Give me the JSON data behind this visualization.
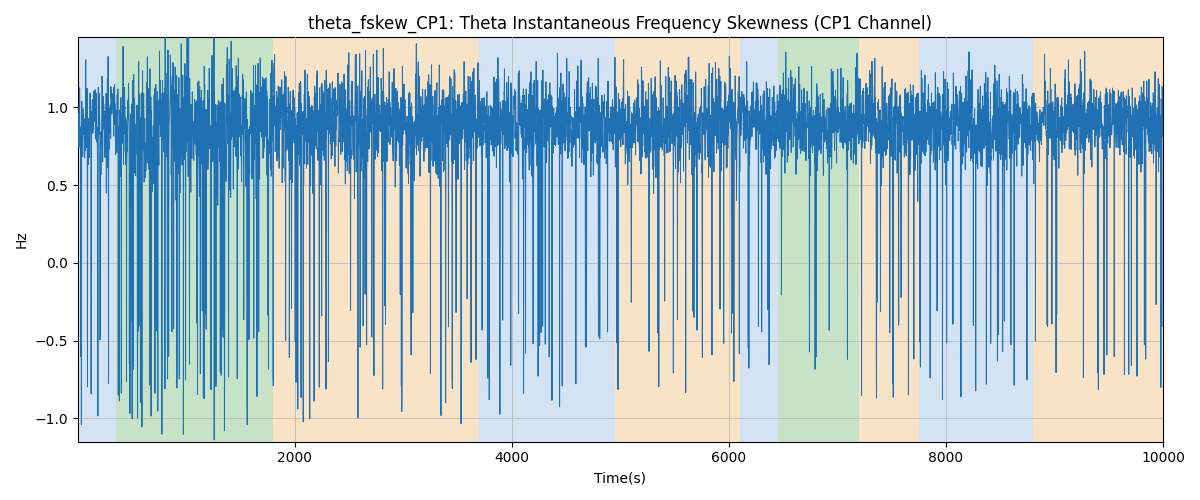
{
  "title": "theta_fskew_CP1: Theta Instantaneous Frequency Skewness (CP1 Channel)",
  "xlabel": "Time(s)",
  "ylabel": "Hz",
  "xlim": [
    0,
    10000
  ],
  "ylim": [
    -1.15,
    1.45
  ],
  "line_color": "#2070b4",
  "line_width": 0.7,
  "background_color": "#ffffff",
  "grid_color": "#bbbbbb",
  "bands": [
    {
      "xmin": 0,
      "xmax": 350,
      "color": "#a8c8e8",
      "alpha": 0.5
    },
    {
      "xmin": 350,
      "xmax": 1800,
      "color": "#90c890",
      "alpha": 0.5
    },
    {
      "xmin": 1800,
      "xmax": 3700,
      "color": "#f5c890",
      "alpha": 0.5
    },
    {
      "xmin": 3700,
      "xmax": 4950,
      "color": "#a8c8e8",
      "alpha": 0.5
    },
    {
      "xmin": 4950,
      "xmax": 6100,
      "color": "#f5c890",
      "alpha": 0.5
    },
    {
      "xmin": 6100,
      "xmax": 6450,
      "color": "#a8c8e8",
      "alpha": 0.5
    },
    {
      "xmin": 6450,
      "xmax": 7200,
      "color": "#90c890",
      "alpha": 0.5
    },
    {
      "xmin": 7200,
      "xmax": 7750,
      "color": "#f5c890",
      "alpha": 0.5
    },
    {
      "xmin": 7750,
      "xmax": 8800,
      "color": "#a8c8e8",
      "alpha": 0.5
    },
    {
      "xmin": 8800,
      "xmax": 10000,
      "color": "#f5c890",
      "alpha": 0.5
    }
  ],
  "n_points": 5000,
  "seed": 77,
  "yticks": [
    -1.0,
    -0.5,
    0.0,
    0.5,
    1.0
  ],
  "xticks": [
    2000,
    4000,
    6000,
    8000,
    10000
  ],
  "title_fontsize": 12
}
